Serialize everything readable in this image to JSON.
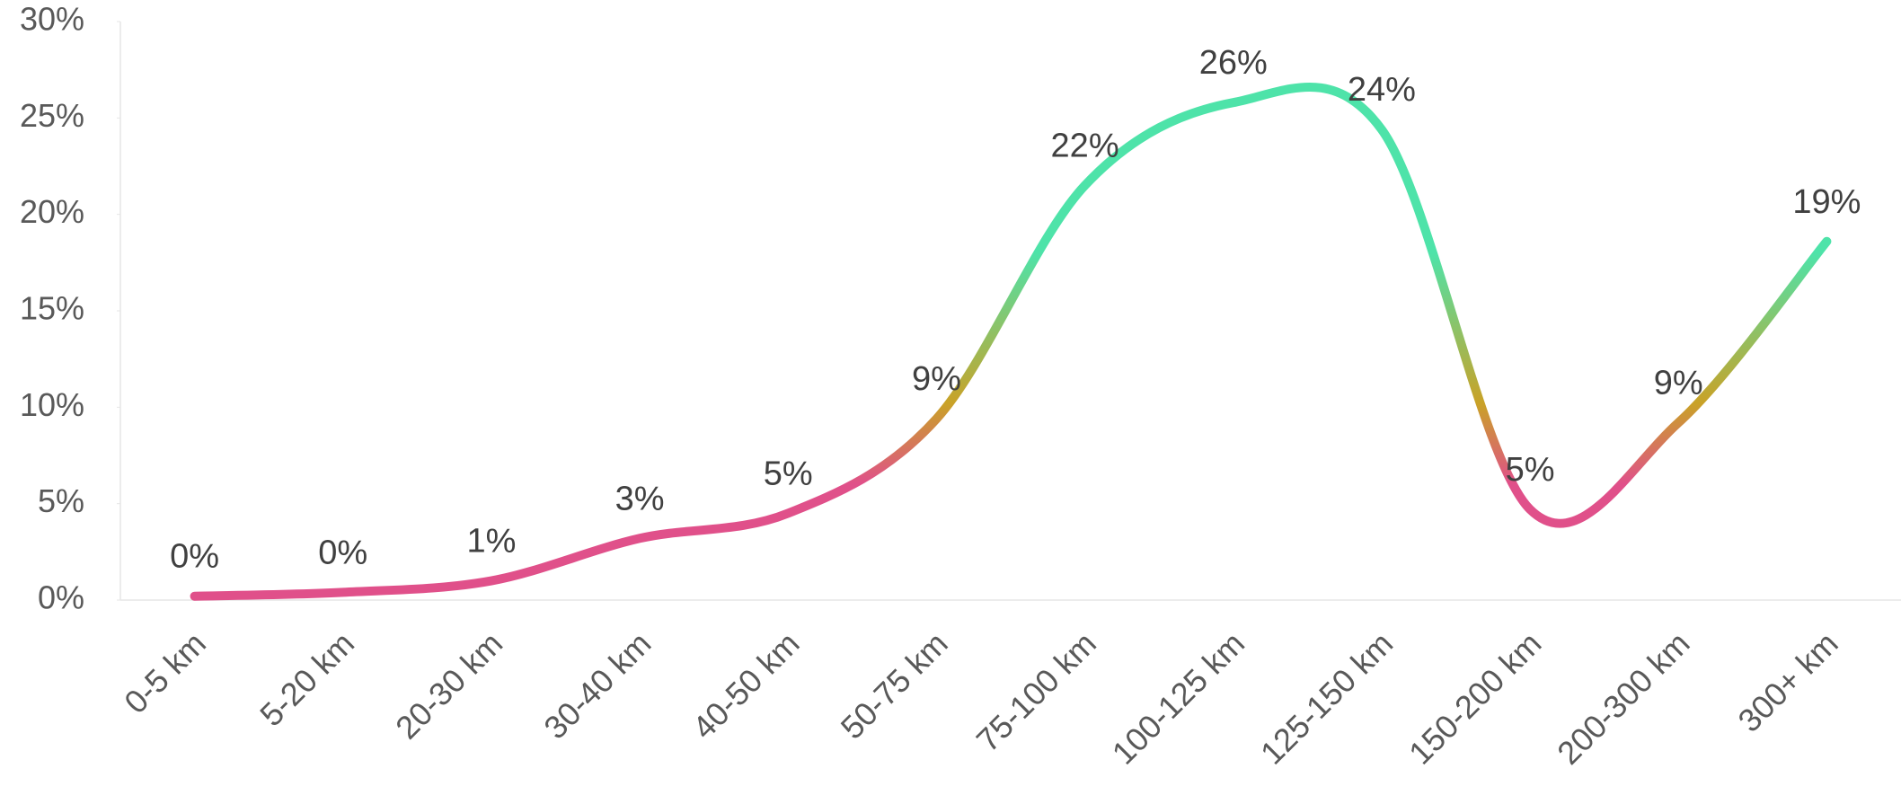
{
  "chart_data": {
    "type": "line",
    "categories": [
      "0-5 km",
      "5-20 km",
      "20-30 km",
      "30-40 km",
      "40-50 km",
      "50-75 km",
      "75-100 km",
      "100-125 km",
      "125-150 km",
      "150-200 km",
      "200-300 km",
      "300+ km"
    ],
    "values": [
      0.2,
      0.4,
      1.0,
      3.2,
      4.5,
      9.4,
      21.5,
      25.8,
      24.4,
      4.7,
      9.2,
      18.6
    ],
    "value_labels": [
      "0%",
      "0%",
      "1%",
      "3%",
      "5%",
      "9%",
      "22%",
      "26%",
      "24%",
      "5%",
      "9%",
      "19%"
    ],
    "colors": [
      "#e0508a",
      "#c9a227",
      "#4ee3a9"
    ],
    "ylim": [
      0,
      30
    ],
    "yticks": [
      {
        "value": 0,
        "label": "0%"
      },
      {
        "value": 5,
        "label": "5%"
      },
      {
        "value": 10,
        "label": "10%"
      },
      {
        "value": 15,
        "label": "15%"
      },
      {
        "value": 20,
        "label": "20%"
      },
      {
        "value": 25,
        "label": "25%"
      },
      {
        "value": 30,
        "label": "30%"
      }
    ],
    "grid": false
  }
}
